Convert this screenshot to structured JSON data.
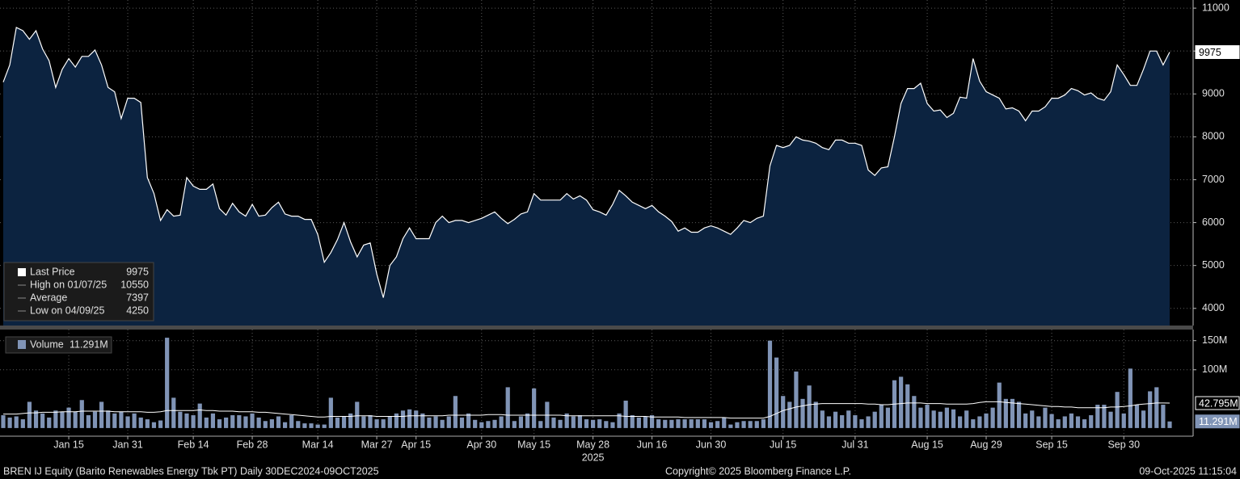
{
  "chart_data": [
    {
      "type": "area",
      "categories": [
        null,
        null,
        null,
        null,
        null,
        null,
        null,
        null,
        null,
        null,
        "Jan 15",
        null,
        null,
        null,
        null,
        null,
        null,
        null,
        null,
        "Jan 31",
        null,
        null,
        null,
        null,
        null,
        null,
        null,
        null,
        null,
        "Feb 14",
        null,
        null,
        null,
        null,
        null,
        null,
        null,
        null,
        "Feb 28",
        null,
        null,
        null,
        null,
        null,
        null,
        null,
        null,
        null,
        "Mar 14",
        null,
        null,
        null,
        null,
        null,
        null,
        null,
        null,
        "Mar 27",
        null,
        null,
        null,
        null,
        null,
        "Apr 15",
        null,
        null,
        null,
        null,
        null,
        null,
        null,
        null,
        null,
        "Apr 30",
        null,
        null,
        null,
        null,
        null,
        null,
        null,
        "May 15",
        null,
        null,
        null,
        null,
        null,
        null,
        null,
        null,
        "May 28",
        null,
        null,
        null,
        null,
        null,
        null,
        null,
        null,
        "Jun 16",
        null,
        null,
        null,
        null,
        null,
        null,
        null,
        null,
        "Jun 30",
        null,
        null,
        null,
        null,
        null,
        null,
        null,
        null,
        null,
        null,
        "Jul 15",
        null,
        null,
        null,
        null,
        null,
        null,
        null,
        null,
        null,
        null,
        "Jul 31",
        null,
        null,
        null,
        null,
        null,
        null,
        null,
        null,
        null,
        null,
        "Aug 15",
        null,
        null,
        null,
        null,
        null,
        null,
        null,
        null,
        "Aug 29",
        null,
        null,
        null,
        null,
        null,
        null,
        null,
        null,
        null,
        "Sep 15",
        null,
        null,
        null,
        null,
        null,
        null,
        null,
        null,
        null,
        null,
        "Sep 30",
        null,
        null,
        null,
        null,
        null,
        null,
        null
      ],
      "year_label": "2025",
      "series": [
        {
          "name": "Last Price",
          "color": "#ffffff",
          "fill": "#0c2340",
          "values": [
            9275,
            9675,
            10550,
            10475,
            10275,
            10475,
            10050,
            9775,
            9150,
            9575,
            9825,
            9625,
            9875,
            9875,
            10025,
            9675,
            9150,
            9050,
            8425,
            8900,
            8900,
            8800,
            7050,
            6675,
            6050,
            6300,
            6150,
            6175,
            7050,
            6850,
            6775,
            6775,
            6900,
            6325,
            6175,
            6450,
            6250,
            6150,
            6425,
            6150,
            6175,
            6350,
            6475,
            6200,
            6150,
            6150,
            6075,
            6075,
            5725,
            5075,
            5300,
            5600,
            6000,
            5550,
            5200,
            5475,
            5525,
            4800,
            4250,
            5000,
            5200,
            5625,
            5875,
            5625,
            5625,
            5625,
            6000,
            6150,
            6000,
            6050,
            6050,
            6000,
            6050,
            6100,
            6175,
            6250,
            6100,
            5975,
            6075,
            6200,
            6250,
            6675,
            6525,
            6525,
            6525,
            6525,
            6675,
            6550,
            6625,
            6525,
            6300,
            6250,
            6175,
            6425,
            6750,
            6625,
            6475,
            6400,
            6325,
            6400,
            6250,
            6150,
            6025,
            5800,
            5875,
            5775,
            5775,
            5875,
            5925,
            5875,
            5800,
            5725,
            5875,
            6050,
            6000,
            6100,
            6150,
            7325,
            7800,
            7750,
            7800,
            8000,
            7925,
            7900,
            7850,
            7750,
            7700,
            7925,
            7925,
            7850,
            7850,
            7800,
            7225,
            7100,
            7275,
            7300,
            8000,
            8775,
            9125,
            9125,
            9250,
            8775,
            8600,
            8625,
            8450,
            8550,
            8925,
            8900,
            9825,
            9300,
            9050,
            8975,
            8900,
            8650,
            8675,
            8600,
            8375,
            8600,
            8600,
            8700,
            8900,
            8900,
            8975,
            9125,
            9075,
            8975,
            9025,
            8900,
            8850,
            9050,
            9675,
            9450,
            9200,
            9200,
            9575,
            10000,
            10000,
            9675,
            9975
          ]
        }
      ],
      "ylim": [
        3600,
        11190
      ],
      "yticks": [
        4000,
        5000,
        6000,
        7000,
        8000,
        9000,
        10000,
        11000
      ],
      "grid": true,
      "last_price": 9975,
      "legend": {
        "position": "bottom-left",
        "entries": [
          {
            "label": "Last Price",
            "value": 9975
          },
          {
            "label": "High on 01/07/25",
            "value": 10550
          },
          {
            "label": "Average",
            "value": 7397
          },
          {
            "label": "Low on 04/09/25",
            "value": 4250
          }
        ]
      }
    },
    {
      "type": "bar",
      "series": [
        {
          "name": "Volume",
          "color": "#8094b6",
          "last_value_label": "11.291M",
          "values": [
            22,
            18,
            20,
            15,
            45,
            30,
            25,
            18,
            30,
            28,
            35,
            28,
            48,
            22,
            28,
            45,
            30,
            25,
            28,
            20,
            25,
            18,
            15,
            10,
            13,
            155,
            52,
            28,
            25,
            22,
            42,
            18,
            25,
            15,
            18,
            22,
            22,
            20,
            25,
            18,
            12,
            15,
            20,
            10,
            22,
            12,
            8,
            8,
            6,
            6,
            52,
            18,
            20,
            25,
            45,
            20,
            22,
            15,
            15,
            20,
            25,
            30,
            32,
            30,
            25,
            18,
            20,
            14,
            20,
            55,
            18,
            25,
            14,
            10,
            12,
            14,
            20,
            70,
            12,
            20,
            25,
            68,
            12,
            45,
            18,
            14,
            25,
            20,
            22,
            15,
            14,
            15,
            12,
            10,
            25,
            47,
            22,
            18,
            20,
            22,
            15,
            14,
            14,
            15,
            15,
            15,
            15,
            15,
            10,
            12,
            18,
            6,
            10,
            12,
            12,
            12,
            15,
            150,
            121,
            55,
            45,
            97,
            50,
            73,
            45,
            30,
            20,
            28,
            22,
            30,
            22,
            15,
            20,
            28,
            40,
            35,
            82,
            88,
            75,
            55,
            35,
            40,
            30,
            28,
            35,
            32,
            20,
            30,
            15,
            20,
            25,
            35,
            78,
            50,
            50,
            45,
            25,
            30,
            20,
            35,
            24,
            15,
            20,
            25,
            20,
            15,
            22,
            40,
            40,
            28,
            62,
            25,
            102,
            40,
            30,
            63,
            70,
            40,
            11.291
          ]
        },
        {
          "type": "line",
          "color": "#ffffff",
          "last_value_label": "42.795M",
          "values": [
            24,
            24,
            24,
            25,
            26,
            26,
            27,
            27,
            27,
            28,
            28,
            28,
            29,
            29,
            29,
            29,
            29,
            28,
            28,
            28,
            28,
            28,
            27,
            27,
            28,
            30,
            30,
            30,
            30,
            30,
            31,
            30,
            30,
            29,
            29,
            29,
            28,
            28,
            28,
            27,
            27,
            26,
            25,
            24,
            23,
            22,
            21,
            20,
            19,
            19,
            20,
            20,
            20,
            20,
            21,
            21,
            21,
            20,
            20,
            20,
            20,
            20,
            21,
            21,
            21,
            21,
            21,
            21,
            22,
            22,
            22,
            22,
            22,
            22,
            23,
            23,
            23,
            22,
            22,
            22,
            22,
            22,
            22,
            22,
            22,
            22,
            21,
            21,
            21,
            21,
            21,
            21,
            21,
            21,
            21,
            20,
            20,
            20,
            20,
            19,
            19,
            19,
            19,
            19,
            18,
            18,
            18,
            18,
            18,
            18,
            18,
            17,
            17,
            17,
            17,
            17,
            17,
            20,
            25,
            30,
            33,
            36,
            38,
            40,
            41,
            42,
            42,
            42,
            42,
            42,
            42,
            42,
            41,
            41,
            40,
            40,
            41,
            42,
            43,
            43,
            43,
            42,
            42,
            42,
            41,
            41,
            41,
            41,
            42,
            44,
            45,
            45,
            45,
            44,
            43,
            42,
            41,
            40,
            39,
            38,
            37,
            37,
            36,
            36,
            35,
            35,
            35,
            35,
            35,
            36,
            36,
            37,
            38,
            40,
            41,
            42,
            43,
            43,
            42.795
          ]
        }
      ],
      "ylim": [
        -14,
        169
      ],
      "yticks": [
        {
          "value": 100,
          "label": "100M"
        },
        {
          "value": 150,
          "label": "150M"
        }
      ],
      "grid": true
    }
  ],
  "footer": {
    "left": "BREN IJ Equity (Barito Renewables Energy Tbk PT) Daily 30DEC2024-09OCT2025",
    "center": "Copyright© 2025 Bloomberg Finance L.P.",
    "right": "09-Oct-2025 11:15:04"
  }
}
